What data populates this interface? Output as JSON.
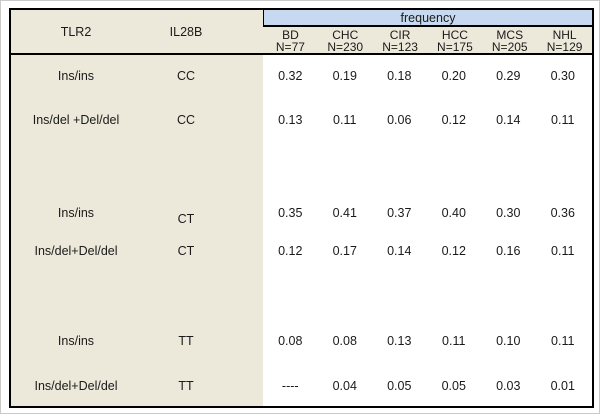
{
  "table": {
    "col_headers": {
      "tlr2": "TLR2",
      "il28b": "IL28B",
      "frequency_label": "frequency"
    },
    "groups": [
      {
        "name": "BD",
        "n": "N=77"
      },
      {
        "name": "CHC",
        "n": "N=230"
      },
      {
        "name": "CIR",
        "n": "N=123"
      },
      {
        "name": "HCC",
        "n": "N=175"
      },
      {
        "name": "MCS",
        "n": "N=205"
      },
      {
        "name": "NHL",
        "n": "N=129"
      }
    ],
    "rows": [
      {
        "tlr2": "Ins/ins",
        "il28b": "CC",
        "values": [
          "0.32",
          "0.19",
          "0.18",
          "0.20",
          "0.29",
          "0.30"
        ]
      },
      {
        "tlr2": "Ins/del +Del/del",
        "il28b": "CC",
        "values": [
          "0.13",
          "0.11",
          "0.06",
          "0.12",
          "0.14",
          "0.11"
        ]
      },
      {
        "tlr2": "Ins/ins",
        "il28b": "CT",
        "values": [
          "0.35",
          "0.41",
          "0.37",
          "0.40",
          "0.30",
          "0.36"
        ]
      },
      {
        "tlr2": "Ins/del+Del/del",
        "il28b": "CT",
        "values": [
          "0.12",
          "0.17",
          "0.14",
          "0.12",
          "0.16",
          "0.11"
        ]
      },
      {
        "tlr2": "Ins/ins",
        "il28b": "TT",
        "values": [
          "0.08",
          "0.08",
          "0.13",
          "0.11",
          "0.10",
          "0.11"
        ]
      },
      {
        "tlr2": "Ins/del+Del/del",
        "il28b": "TT",
        "values": [
          "----",
          "0.04",
          "0.05",
          "0.05",
          "0.03",
          "0.01"
        ]
      }
    ],
    "colors": {
      "banner_blue": "#c6d9f1",
      "label_beige": "#ece9da",
      "border": "#000000"
    }
  }
}
